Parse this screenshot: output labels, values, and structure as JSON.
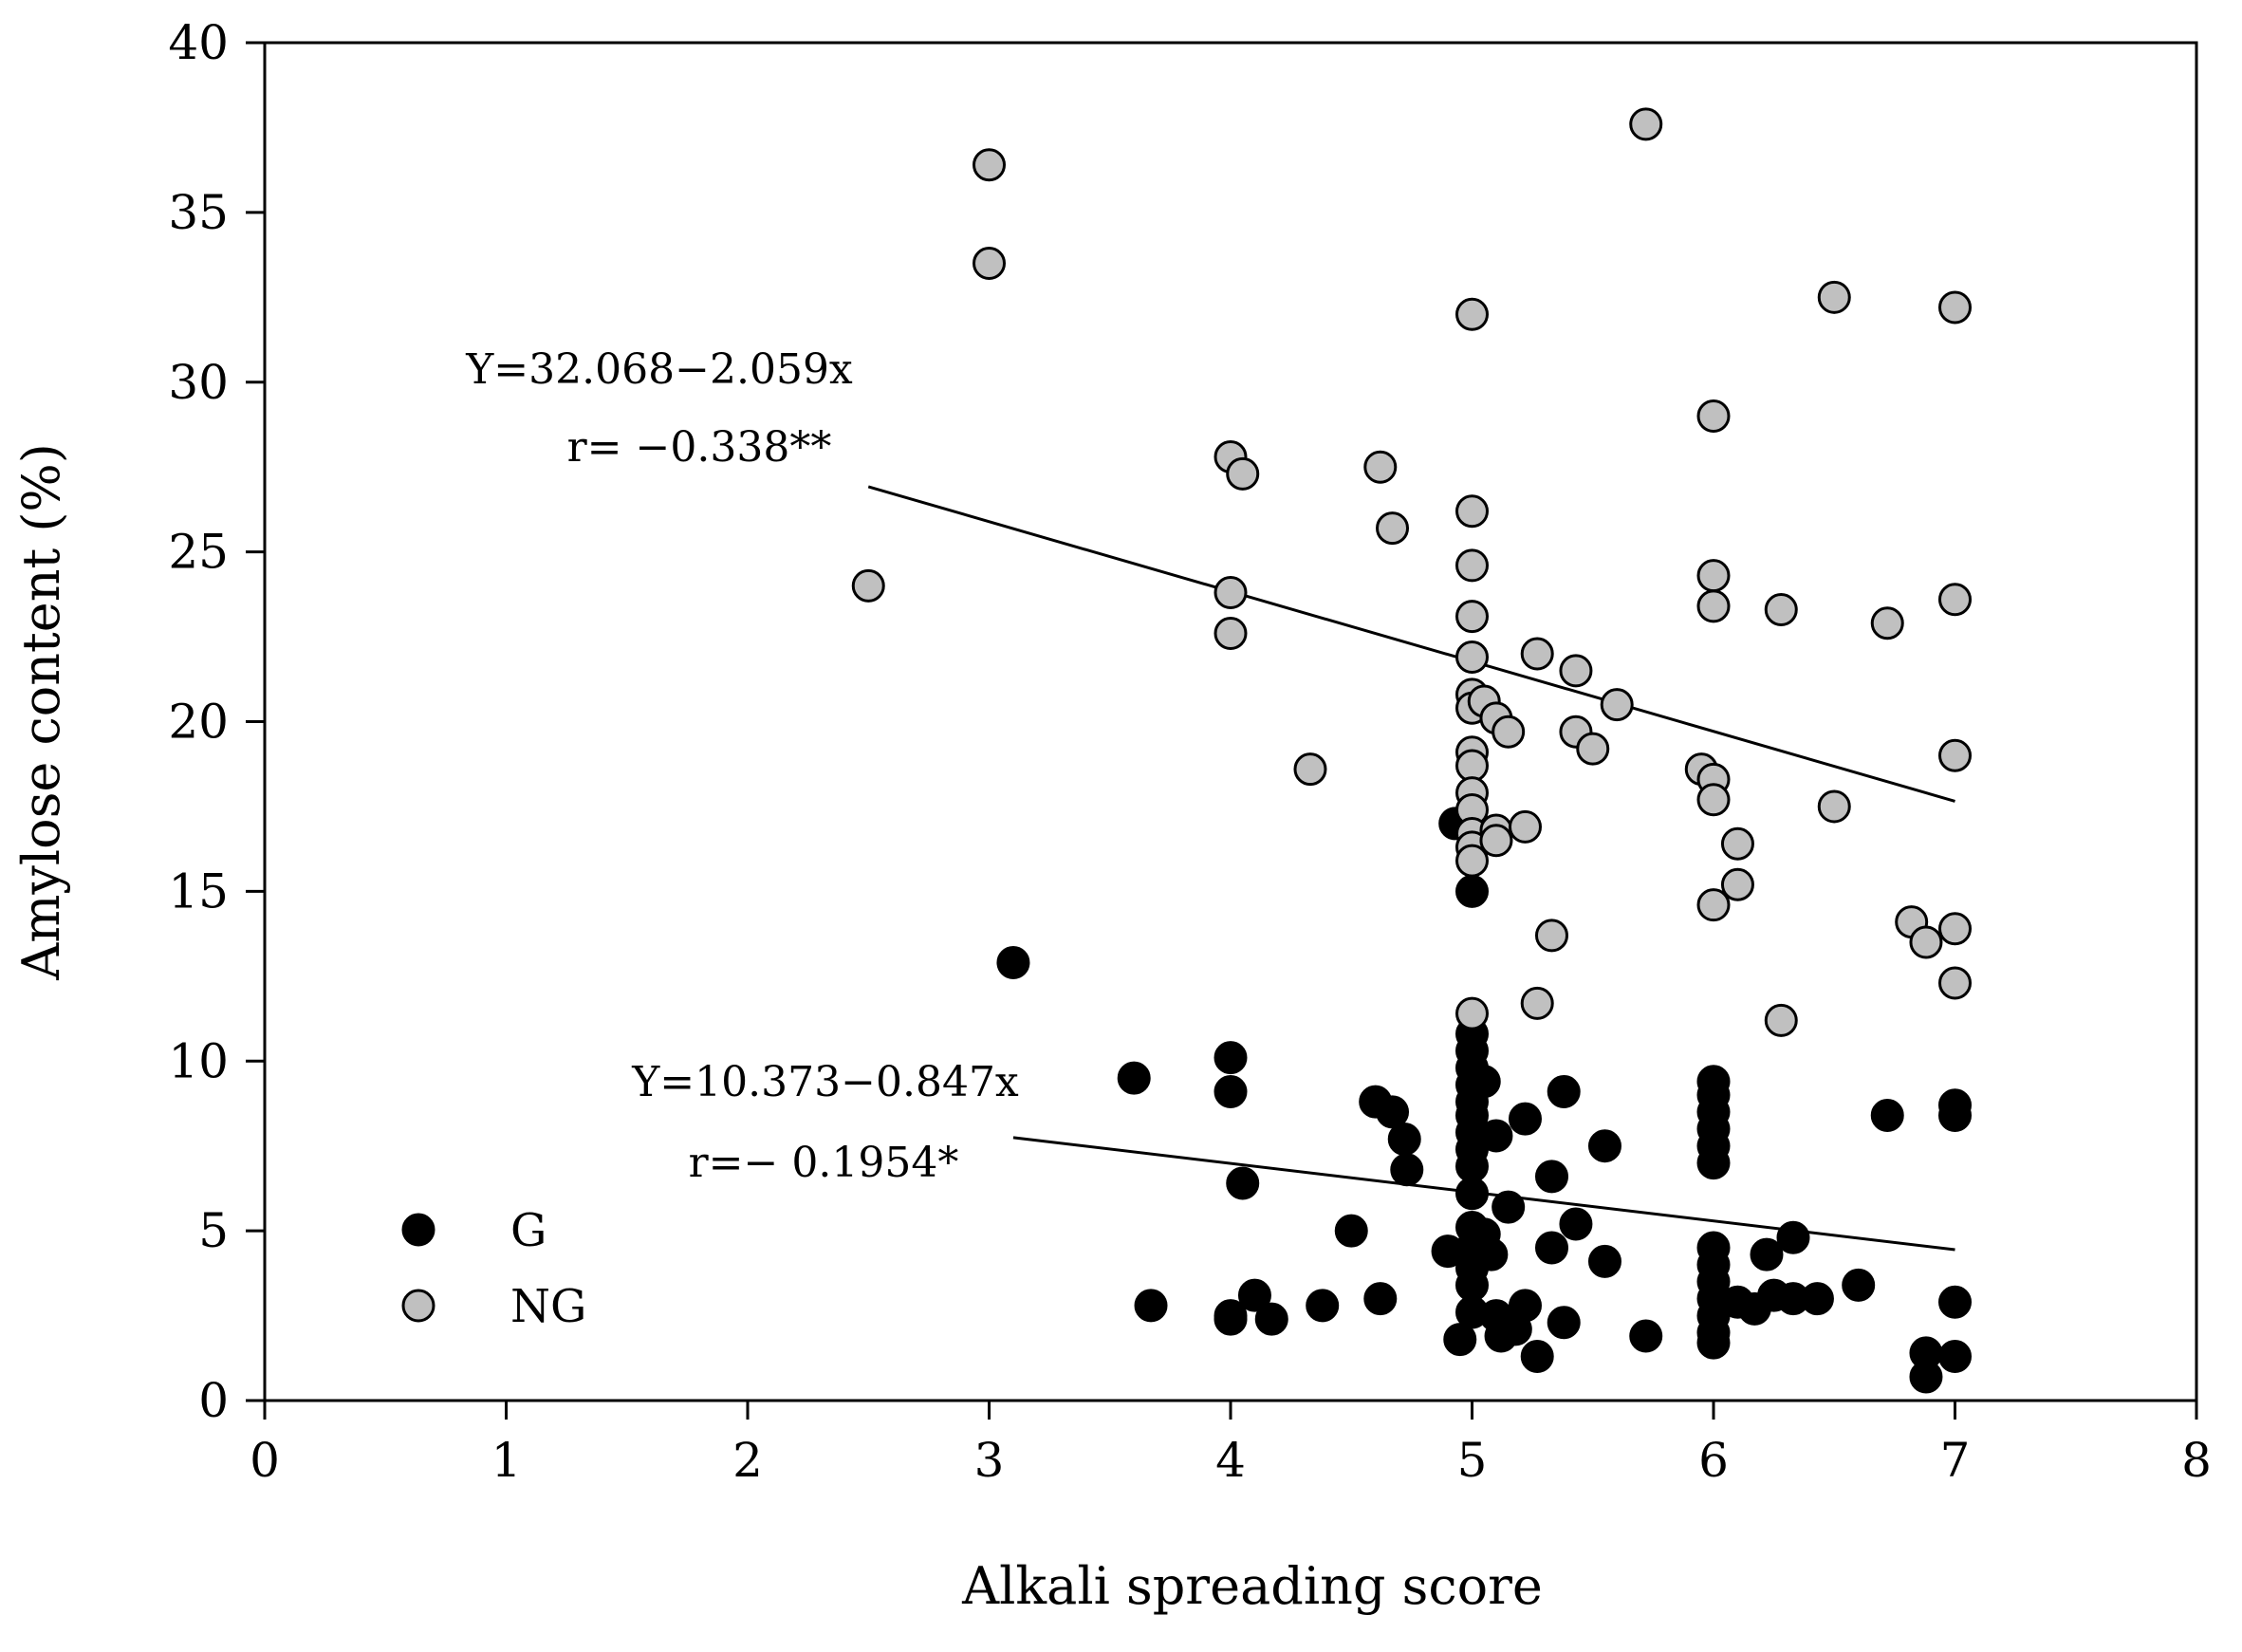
{
  "chart_data": {
    "type": "scatter",
    "title": "",
    "xlabel": "Alkali spreading score",
    "ylabel": "Amylose content (%)",
    "xlim": [
      0,
      8
    ],
    "ylim": [
      0,
      40
    ],
    "x_ticks": [
      "0",
      "1",
      "2",
      "3",
      "4",
      "5",
      "6",
      "7",
      "8"
    ],
    "y_ticks": [
      "0",
      "5",
      "10",
      "15",
      "20",
      "25",
      "30",
      "35",
      "40"
    ],
    "grid": false,
    "legend_position": "bottom-left",
    "series": [
      {
        "name": "G",
        "color": "#000000",
        "points": [
          [
            3.1,
            12.9
          ],
          [
            3.6,
            9.5
          ],
          [
            3.67,
            2.8
          ],
          [
            4.0,
            10.1
          ],
          [
            4.0,
            9.1
          ],
          [
            4.0,
            2.5
          ],
          [
            4.0,
            2.4
          ],
          [
            4.05,
            6.4
          ],
          [
            4.1,
            3.1
          ],
          [
            4.17,
            2.4
          ],
          [
            4.38,
            2.8
          ],
          [
            4.5,
            5.0
          ],
          [
            4.6,
            8.8
          ],
          [
            4.62,
            3.0
          ],
          [
            4.67,
            8.5
          ],
          [
            4.72,
            7.7
          ],
          [
            4.73,
            6.8
          ],
          [
            4.9,
            4.4
          ],
          [
            4.93,
            17.0
          ],
          [
            4.95,
            1.8
          ],
          [
            5.0,
            15.0
          ],
          [
            5.0,
            10.8
          ],
          [
            5.0,
            10.3
          ],
          [
            5.0,
            9.8
          ],
          [
            5.0,
            9.3
          ],
          [
            5.0,
            8.8
          ],
          [
            5.0,
            8.4
          ],
          [
            5.0,
            7.9
          ],
          [
            5.0,
            7.4
          ],
          [
            5.0,
            6.9
          ],
          [
            5.0,
            6.1
          ],
          [
            5.0,
            5.1
          ],
          [
            5.0,
            4.5
          ],
          [
            5.0,
            3.9
          ],
          [
            5.0,
            3.4
          ],
          [
            5.0,
            2.6
          ],
          [
            5.05,
            9.4
          ],
          [
            5.05,
            4.9
          ],
          [
            5.08,
            4.3
          ],
          [
            5.1,
            7.8
          ],
          [
            5.1,
            2.5
          ],
          [
            5.12,
            1.9
          ],
          [
            5.15,
            5.7
          ],
          [
            5.18,
            2.1
          ],
          [
            5.22,
            8.3
          ],
          [
            5.22,
            2.8
          ],
          [
            5.27,
            1.3
          ],
          [
            5.33,
            6.6
          ],
          [
            5.33,
            4.5
          ],
          [
            5.38,
            2.3
          ],
          [
            5.38,
            9.1
          ],
          [
            5.43,
            5.2
          ],
          [
            5.55,
            7.5
          ],
          [
            5.55,
            4.1
          ],
          [
            5.72,
            1.9
          ],
          [
            6.0,
            9.4
          ],
          [
            6.0,
            9.0
          ],
          [
            6.0,
            8.5
          ],
          [
            6.0,
            8.0
          ],
          [
            6.0,
            7.5
          ],
          [
            6.0,
            7.0
          ],
          [
            6.0,
            4.5
          ],
          [
            6.0,
            4.0
          ],
          [
            6.0,
            3.5
          ],
          [
            6.0,
            3.0
          ],
          [
            6.0,
            2.5
          ],
          [
            6.0,
            2.0
          ],
          [
            6.0,
            1.7
          ],
          [
            6.1,
            2.9
          ],
          [
            6.17,
            2.7
          ],
          [
            6.22,
            4.3
          ],
          [
            6.25,
            3.1
          ],
          [
            6.33,
            4.8
          ],
          [
            6.33,
            3.0
          ],
          [
            6.43,
            3.0
          ],
          [
            6.6,
            3.4
          ],
          [
            6.72,
            8.4
          ],
          [
            6.88,
            1.4
          ],
          [
            6.88,
            0.7
          ],
          [
            7.0,
            8.7
          ],
          [
            7.0,
            8.4
          ],
          [
            7.0,
            2.9
          ],
          [
            7.0,
            1.3
          ]
        ]
      },
      {
        "name": "NG",
        "color": "#c0c0c0",
        "points": [
          [
            2.5,
            24.0
          ],
          [
            3.0,
            36.4
          ],
          [
            3.0,
            33.5
          ],
          [
            4.0,
            27.8
          ],
          [
            4.0,
            23.8
          ],
          [
            4.0,
            22.6
          ],
          [
            4.05,
            27.3
          ],
          [
            4.33,
            18.6
          ],
          [
            4.62,
            27.5
          ],
          [
            4.67,
            25.7
          ],
          [
            5.0,
            32.0
          ],
          [
            5.0,
            26.2
          ],
          [
            5.0,
            24.6
          ],
          [
            5.0,
            23.1
          ],
          [
            5.0,
            21.9
          ],
          [
            5.0,
            20.8
          ],
          [
            5.0,
            20.4
          ],
          [
            5.0,
            19.1
          ],
          [
            5.0,
            18.7
          ],
          [
            5.0,
            17.9
          ],
          [
            5.0,
            17.4
          ],
          [
            5.0,
            16.7
          ],
          [
            5.0,
            16.3
          ],
          [
            5.0,
            15.9
          ],
          [
            5.0,
            11.4
          ],
          [
            5.05,
            20.6
          ],
          [
            5.1,
            20.1
          ],
          [
            5.1,
            16.8
          ],
          [
            5.1,
            16.5
          ],
          [
            5.15,
            19.7
          ],
          [
            5.22,
            16.9
          ],
          [
            5.27,
            22.0
          ],
          [
            5.27,
            11.7
          ],
          [
            5.33,
            13.7
          ],
          [
            5.43,
            21.5
          ],
          [
            5.43,
            19.7
          ],
          [
            5.5,
            19.2
          ],
          [
            5.6,
            20.5
          ],
          [
            5.72,
            37.6
          ],
          [
            5.95,
            18.6
          ],
          [
            6.0,
            29.0
          ],
          [
            6.0,
            24.3
          ],
          [
            6.0,
            23.4
          ],
          [
            6.0,
            18.3
          ],
          [
            6.0,
            17.7
          ],
          [
            6.0,
            14.6
          ],
          [
            6.1,
            16.4
          ],
          [
            6.1,
            15.2
          ],
          [
            6.28,
            23.3
          ],
          [
            6.28,
            11.2
          ],
          [
            6.5,
            32.5
          ],
          [
            6.5,
            17.5
          ],
          [
            6.72,
            22.9
          ],
          [
            6.82,
            14.1
          ],
          [
            6.88,
            13.5
          ],
          [
            7.0,
            32.2
          ],
          [
            7.0,
            23.6
          ],
          [
            7.0,
            19.0
          ],
          [
            7.0,
            13.9
          ],
          [
            7.0,
            12.3
          ]
        ]
      }
    ],
    "regression_lines": [
      {
        "series": "NG",
        "intercept": 32.068,
        "slope": -2.059,
        "x_range": [
          2.5,
          7.0
        ],
        "equation": "Y=32.068−2.059x",
        "r_label": "r= −0.338**"
      },
      {
        "series": "G",
        "intercept": 10.373,
        "slope": -0.847,
        "x_range": [
          3.1,
          7.0
        ],
        "equation": "Y=10.373−0.847x",
        "r_label": "r=− 0.1954*"
      }
    ]
  }
}
